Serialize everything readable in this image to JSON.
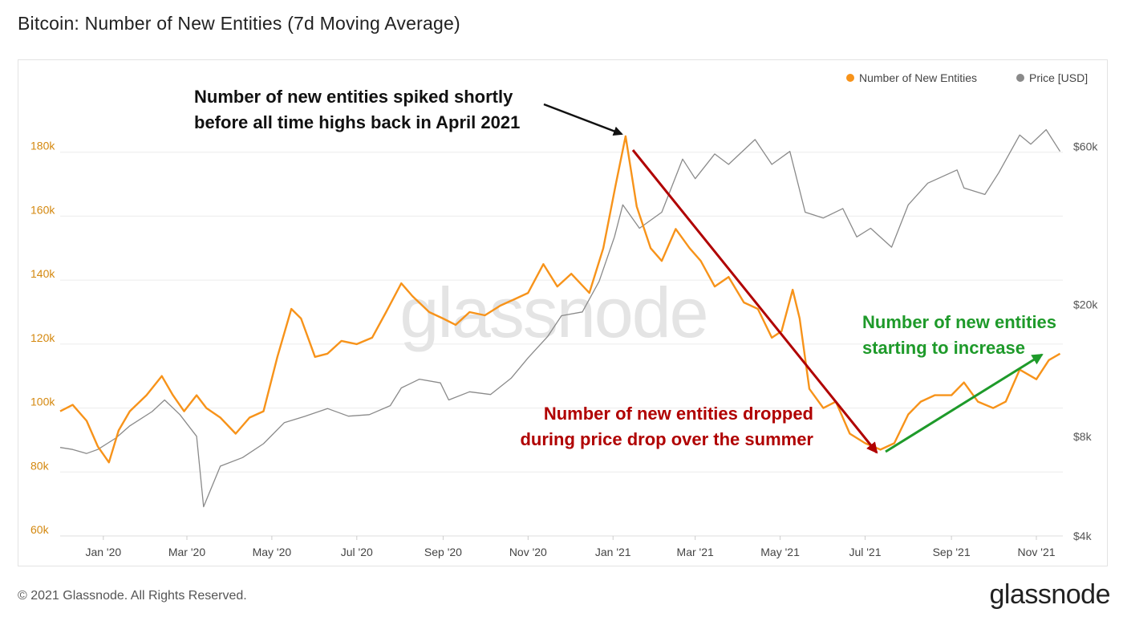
{
  "title": "Bitcoin: Number of New Entities (7d Moving Average)",
  "footer": {
    "copyright": "© 2021 Glassnode. All Rights Reserved.",
    "logo": "glassnode"
  },
  "watermark": "glassnode",
  "colors": {
    "entities": "#f7931a",
    "price": "#8a8a8a",
    "annot_black": "#111111",
    "annot_red": "#b00000",
    "annot_green": "#1e9a2a"
  },
  "chart_data": {
    "type": "line",
    "x_ticks": [
      "Jan '20",
      "Mar '20",
      "May '20",
      "Jul '20",
      "Sep '20",
      "Nov '20",
      "Jan '21",
      "Mar '21",
      "May '21",
      "Jul '21",
      "Sep '21",
      "Nov '21"
    ],
    "y_left": {
      "ticks": [
        "60k",
        "80k",
        "100k",
        "120k",
        "140k",
        "160k",
        "180k"
      ],
      "range": [
        60000,
        200000
      ]
    },
    "y_right": {
      "ticks": [
        "$4k",
        "$8k",
        "$20k",
        "$60k"
      ],
      "scale": "log"
    },
    "x_range": [
      "2019-12-01",
      "2021-11-20"
    ],
    "grid": true,
    "legend_position": "top-right",
    "series": [
      {
        "name": "Number of New Entities",
        "axis": "left",
        "points": [
          [
            "2019-12-01",
            99000
          ],
          [
            "2019-12-10",
            101000
          ],
          [
            "2019-12-20",
            96000
          ],
          [
            "2019-12-28",
            88000
          ],
          [
            "2020-01-05",
            83000
          ],
          [
            "2020-01-12",
            93000
          ],
          [
            "2020-01-20",
            99000
          ],
          [
            "2020-02-01",
            104000
          ],
          [
            "2020-02-12",
            110000
          ],
          [
            "2020-02-20",
            104000
          ],
          [
            "2020-02-28",
            99000
          ],
          [
            "2020-03-08",
            104000
          ],
          [
            "2020-03-15",
            100000
          ],
          [
            "2020-03-25",
            97000
          ],
          [
            "2020-04-05",
            92000
          ],
          [
            "2020-04-15",
            97000
          ],
          [
            "2020-04-25",
            99000
          ],
          [
            "2020-05-05",
            116000
          ],
          [
            "2020-05-15",
            131000
          ],
          [
            "2020-05-22",
            128000
          ],
          [
            "2020-06-01",
            116000
          ],
          [
            "2020-06-10",
            117000
          ],
          [
            "2020-06-20",
            121000
          ],
          [
            "2020-07-01",
            120000
          ],
          [
            "2020-07-12",
            122000
          ],
          [
            "2020-07-22",
            130000
          ],
          [
            "2020-08-02",
            139000
          ],
          [
            "2020-08-10",
            135000
          ],
          [
            "2020-08-22",
            130000
          ],
          [
            "2020-09-01",
            128000
          ],
          [
            "2020-09-10",
            126000
          ],
          [
            "2020-09-20",
            130000
          ],
          [
            "2020-10-01",
            129000
          ],
          [
            "2020-10-12",
            132000
          ],
          [
            "2020-10-22",
            134000
          ],
          [
            "2020-11-01",
            136000
          ],
          [
            "2020-11-12",
            145000
          ],
          [
            "2020-11-22",
            138000
          ],
          [
            "2020-12-02",
            142000
          ],
          [
            "2020-12-15",
            136000
          ],
          [
            "2020-12-25",
            150000
          ],
          [
            "2021-01-03",
            170000
          ],
          [
            "2021-01-10",
            185000
          ],
          [
            "2021-01-18",
            163000
          ],
          [
            "2021-01-28",
            150000
          ],
          [
            "2021-02-05",
            146000
          ],
          [
            "2021-02-15",
            156000
          ],
          [
            "2021-02-25",
            150000
          ],
          [
            "2021-03-05",
            146000
          ],
          [
            "2021-03-15",
            138000
          ],
          [
            "2021-03-25",
            141000
          ],
          [
            "2021-04-05",
            133000
          ],
          [
            "2021-04-15",
            131000
          ],
          [
            "2021-04-25",
            122000
          ],
          [
            "2021-05-02",
            124000
          ],
          [
            "2021-05-10",
            137000
          ],
          [
            "2021-05-15",
            128000
          ],
          [
            "2021-05-22",
            106000
          ],
          [
            "2021-06-01",
            100000
          ],
          [
            "2021-06-10",
            102000
          ],
          [
            "2021-06-20",
            92000
          ],
          [
            "2021-07-01",
            89000
          ],
          [
            "2021-07-12",
            87000
          ],
          [
            "2021-07-22",
            89000
          ],
          [
            "2021-08-01",
            98000
          ],
          [
            "2021-08-10",
            102000
          ],
          [
            "2021-08-20",
            104000
          ],
          [
            "2021-09-01",
            104000
          ],
          [
            "2021-09-10",
            108000
          ],
          [
            "2021-09-20",
            102000
          ],
          [
            "2021-10-01",
            100000
          ],
          [
            "2021-10-10",
            102000
          ],
          [
            "2021-10-20",
            112000
          ],
          [
            "2021-11-01",
            109000
          ],
          [
            "2021-11-10",
            115000
          ],
          [
            "2021-11-18",
            117000
          ]
        ]
      },
      {
        "name": "Price [USD]",
        "axis": "right",
        "points": [
          [
            "2019-12-01",
            7400
          ],
          [
            "2019-12-10",
            7300
          ],
          [
            "2019-12-20",
            7100
          ],
          [
            "2019-12-28",
            7300
          ],
          [
            "2020-01-10",
            7900
          ],
          [
            "2020-01-20",
            8600
          ],
          [
            "2020-02-05",
            9500
          ],
          [
            "2020-02-14",
            10300
          ],
          [
            "2020-02-25",
            9300
          ],
          [
            "2020-03-08",
            8000
          ],
          [
            "2020-03-13",
            4900
          ],
          [
            "2020-03-25",
            6500
          ],
          [
            "2020-04-10",
            6900
          ],
          [
            "2020-04-25",
            7600
          ],
          [
            "2020-05-10",
            8800
          ],
          [
            "2020-05-25",
            9200
          ],
          [
            "2020-06-10",
            9700
          ],
          [
            "2020-06-25",
            9200
          ],
          [
            "2020-07-10",
            9300
          ],
          [
            "2020-07-25",
            9900
          ],
          [
            "2020-08-02",
            11200
          ],
          [
            "2020-08-15",
            11900
          ],
          [
            "2020-08-30",
            11600
          ],
          [
            "2020-09-05",
            10300
          ],
          [
            "2020-09-20",
            10900
          ],
          [
            "2020-10-05",
            10700
          ],
          [
            "2020-10-20",
            12000
          ],
          [
            "2020-11-01",
            13800
          ],
          [
            "2020-11-15",
            16000
          ],
          [
            "2020-11-25",
            18500
          ],
          [
            "2020-12-10",
            19000
          ],
          [
            "2020-12-22",
            23500
          ],
          [
            "2021-01-02",
            32000
          ],
          [
            "2021-01-08",
            40000
          ],
          [
            "2021-01-20",
            34000
          ],
          [
            "2021-02-05",
            38000
          ],
          [
            "2021-02-20",
            55000
          ],
          [
            "2021-03-01",
            48000
          ],
          [
            "2021-03-15",
            57000
          ],
          [
            "2021-03-25",
            53000
          ],
          [
            "2021-04-13",
            63000
          ],
          [
            "2021-04-25",
            53000
          ],
          [
            "2021-05-08",
            58000
          ],
          [
            "2021-05-19",
            38000
          ],
          [
            "2021-06-01",
            36500
          ],
          [
            "2021-06-15",
            39000
          ],
          [
            "2021-06-25",
            32000
          ],
          [
            "2021-07-05",
            34000
          ],
          [
            "2021-07-20",
            29800
          ],
          [
            "2021-08-01",
            40000
          ],
          [
            "2021-08-15",
            46500
          ],
          [
            "2021-09-05",
            51000
          ],
          [
            "2021-09-10",
            45000
          ],
          [
            "2021-09-25",
            43000
          ],
          [
            "2021-10-05",
            50000
          ],
          [
            "2021-10-20",
            65000
          ],
          [
            "2021-10-28",
            61000
          ],
          [
            "2021-11-08",
            67500
          ],
          [
            "2021-11-18",
            58000
          ]
        ]
      }
    ],
    "annotations": [
      {
        "lines": [
          "Number of new entities spiked shortly",
          "before all time highs back in April 2021"
        ],
        "color": "black"
      },
      {
        "lines": [
          "Number of new entities dropped",
          "during price drop over the summer"
        ],
        "color": "red"
      },
      {
        "lines": [
          "Number of new entities",
          "starting to increase"
        ],
        "color": "green"
      }
    ]
  }
}
